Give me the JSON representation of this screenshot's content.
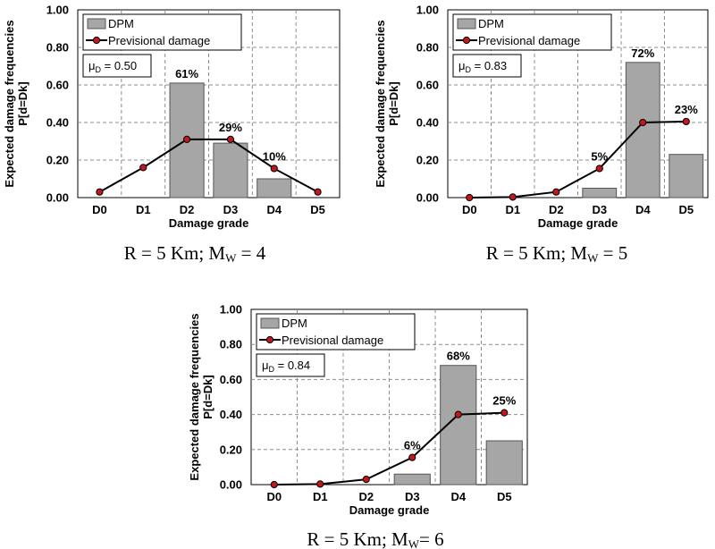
{
  "chart_data": [
    {
      "type": "bar",
      "categories": [
        "D0",
        "D1",
        "D2",
        "D3",
        "D4",
        "D5"
      ],
      "xlabel": "Damage grade",
      "ylabel_line1": "Expected damage frequencies",
      "ylabel_line2": "P[d=Dk]",
      "ylim": [
        0,
        1
      ],
      "yticks": [
        "0.00",
        "0.20",
        "0.40",
        "0.60",
        "0.80",
        "1.00"
      ],
      "grid": true,
      "legend_placement": "top-left",
      "series": [
        {
          "name": "DPM",
          "kind": "bar",
          "values": [
            0,
            0,
            0.61,
            0.29,
            0.1,
            0
          ]
        },
        {
          "name": "Previsional damage",
          "kind": "line",
          "values": [
            0.03,
            0.16,
            0.31,
            0.31,
            0.155,
            0.03
          ]
        }
      ],
      "data_labels": [
        "",
        "",
        "61%",
        "29%",
        "10%",
        ""
      ],
      "mu_label": "0.50",
      "caption": {
        "lead": "R = 5 Km; M",
        "sub": "W",
        "tail": " = 4"
      }
    },
    {
      "type": "bar",
      "categories": [
        "D0",
        "D1",
        "D2",
        "D3",
        "D4",
        "D5"
      ],
      "xlabel": "Damage grade",
      "ylabel_line1": "Expected damage frequencies",
      "ylabel_line2": "P[d=Dk]",
      "ylim": [
        0,
        1
      ],
      "yticks": [
        "0.00",
        "0.20",
        "0.40",
        "0.60",
        "0.80",
        "1.00"
      ],
      "grid": true,
      "legend_placement": "top-left",
      "series": [
        {
          "name": "DPM",
          "kind": "bar",
          "values": [
            0,
            0,
            0,
            0.05,
            0.72,
            0.23
          ]
        },
        {
          "name": "Previsional damage",
          "kind": "line",
          "values": [
            0.0,
            0.003,
            0.03,
            0.155,
            0.4,
            0.405
          ]
        }
      ],
      "data_labels": [
        "",
        "",
        "",
        "5%",
        "72%",
        "23%"
      ],
      "mu_label": "0.83",
      "caption": {
        "lead": "R = 5 Km; M",
        "sub": "W",
        "tail": " = 5"
      }
    },
    {
      "type": "bar",
      "categories": [
        "D0",
        "D1",
        "D2",
        "D3",
        "D4",
        "D5"
      ],
      "xlabel": "Damage grade",
      "ylabel_line1": "Expected damage frequencies",
      "ylabel_line2": "P[d=Dk]",
      "ylim": [
        0,
        1
      ],
      "yticks": [
        "0.00",
        "0.20",
        "0.40",
        "0.60",
        "0.80",
        "1.00"
      ],
      "grid": true,
      "legend_placement": "top-left",
      "series": [
        {
          "name": "DPM",
          "kind": "bar",
          "values": [
            0,
            0,
            0,
            0.06,
            0.68,
            0.25
          ]
        },
        {
          "name": "Previsional damage",
          "kind": "line",
          "values": [
            0.0,
            0.003,
            0.03,
            0.155,
            0.4,
            0.41
          ]
        }
      ],
      "data_labels": [
        "",
        "",
        "",
        "6%",
        "68%",
        "25%"
      ],
      "mu_label": "0.84",
      "caption": {
        "lead": "R = 5 Km; M",
        "sub": "W",
        "tail": "= 6"
      }
    }
  ],
  "colors": {
    "bar_fill": "#a6a6a6",
    "bar_stroke": "#555555",
    "line": "#000000",
    "marker_fill": "#c0181d",
    "grid": "#8c8c8c"
  }
}
